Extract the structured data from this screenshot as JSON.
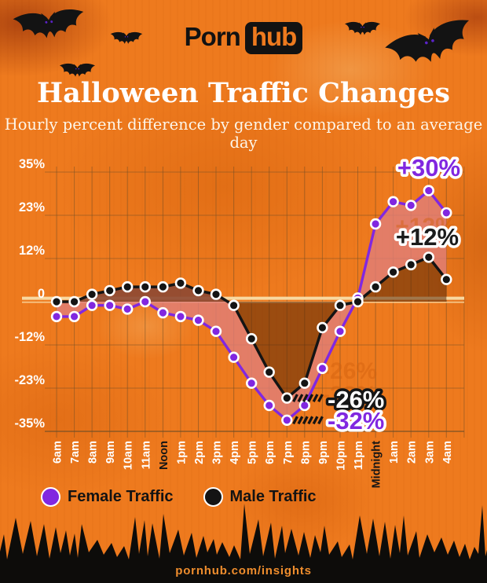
{
  "header": {
    "logo_text_1": "Porn",
    "logo_text_2": "hub",
    "title": "Halloween Traffic Changes",
    "subtitle": "Hourly percent difference by gender compared to an average day"
  },
  "chart_data": {
    "type": "line",
    "title": "Halloween Traffic Changes",
    "xlabel": "",
    "ylabel": "Hourly percent difference vs average day",
    "categories": [
      "6am",
      "7am",
      "8am",
      "9am",
      "10am",
      "11am",
      "Noon",
      "1pm",
      "2pm",
      "3pm",
      "4pm",
      "5pm",
      "6pm",
      "7pm",
      "8pm",
      "9pm",
      "10pm",
      "11pm",
      "Midnight",
      "1am",
      "2am",
      "3am",
      "4am"
    ],
    "series": [
      {
        "name": "Female Traffic",
        "color": "#8127e0",
        "values": [
          -4,
          -4,
          -1,
          -1,
          -2,
          0,
          -3,
          -4,
          -5,
          -8,
          -15,
          -22,
          -28,
          -32,
          -28,
          -18,
          -8,
          1,
          21,
          27,
          26,
          30,
          24
        ]
      },
      {
        "name": "Male Traffic",
        "color": "#141414",
        "values": [
          0,
          0,
          2,
          3,
          4,
          4,
          4,
          5,
          3,
          2,
          -1,
          -10,
          -19,
          -26,
          -22,
          -7,
          -1,
          0,
          4,
          8,
          10,
          12,
          6
        ]
      }
    ],
    "y_ticks": [
      {
        "label": "35%",
        "value": 35
      },
      {
        "label": "23%",
        "value": 23.33
      },
      {
        "label": "12%",
        "value": 11.67
      },
      {
        "label": "0",
        "value": 0
      },
      {
        "label": "-12%",
        "value": -11.67
      },
      {
        "label": "-23%",
        "value": -23.33
      },
      {
        "label": "-35%",
        "value": -35
      }
    ],
    "ylim": [
      -35,
      35
    ],
    "grid": true,
    "legend_position": "bottom-left",
    "x_label_dark": [
      "Noon",
      "Midnight"
    ],
    "annotations": [
      {
        "text": "+30%",
        "series": "Female Traffic",
        "category": "3am",
        "value": 30
      },
      {
        "text": "+12%",
        "series": "Male Traffic",
        "category": "3am",
        "value": 12
      },
      {
        "text": "-26%",
        "series": "Male Traffic",
        "category": "7pm",
        "value": -26
      },
      {
        "text": "-32%",
        "series": "Female Traffic",
        "category": "7pm",
        "value": -32
      }
    ],
    "zero_line_color": "#f8d9a2",
    "fill_between_lines_color": "rgba(224,126,121,0.8)",
    "fill_male_to_zero_color": "rgba(88,38,6,0.55)"
  },
  "legend": {
    "items": [
      {
        "label": "Female Traffic",
        "color": "#8127e0"
      },
      {
        "label": "Male Traffic",
        "color": "#141414"
      }
    ]
  },
  "footer": {
    "url": "pornhub.com/insights"
  },
  "colors": {
    "background": "#ee7a1e",
    "accent_purple": "#8127e0",
    "black": "#141414",
    "grid": "#6f4e26",
    "cream": "#f8d9a2"
  }
}
